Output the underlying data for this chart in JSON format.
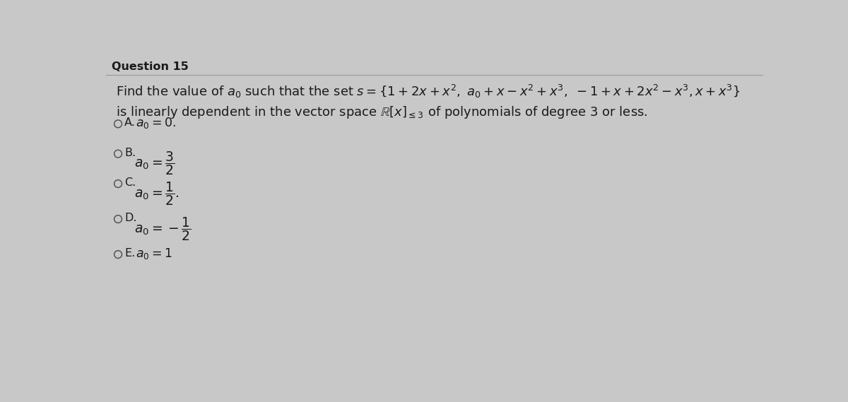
{
  "title": "Question 15",
  "background_color": "#c8c8c8",
  "title_fontsize": 11.5,
  "title_fontweight": "bold",
  "q_line1": "Find the value of $a_0$ such that the set $s=\\{1+2x+x^2,\\ a_0+x-x^2+x^3,\\ -1+x+2x^2-x^3,x+x^3\\}$",
  "q_line2": "is linearly dependent in the vector space $\\mathbb{R}[x]_{\\leq 3}$ of polynomials of degree 3 or less.",
  "options": [
    {
      "label": "A.",
      "text": "$a_0=0.$"
    },
    {
      "label": "B.",
      "text": "$a_0=\\dfrac{3}{2}$"
    },
    {
      "label": "C.",
      "text": "$a_0=\\dfrac{1}{2}.$"
    },
    {
      "label": "D.",
      "text": "$a_0=-\\dfrac{1}{2}$"
    },
    {
      "label": "E.",
      "text": "$a_0=1$"
    }
  ],
  "text_color": "#1a1a1a",
  "option_fontsize": 11.5,
  "question_fontsize": 13.0,
  "line_color": "#999999"
}
